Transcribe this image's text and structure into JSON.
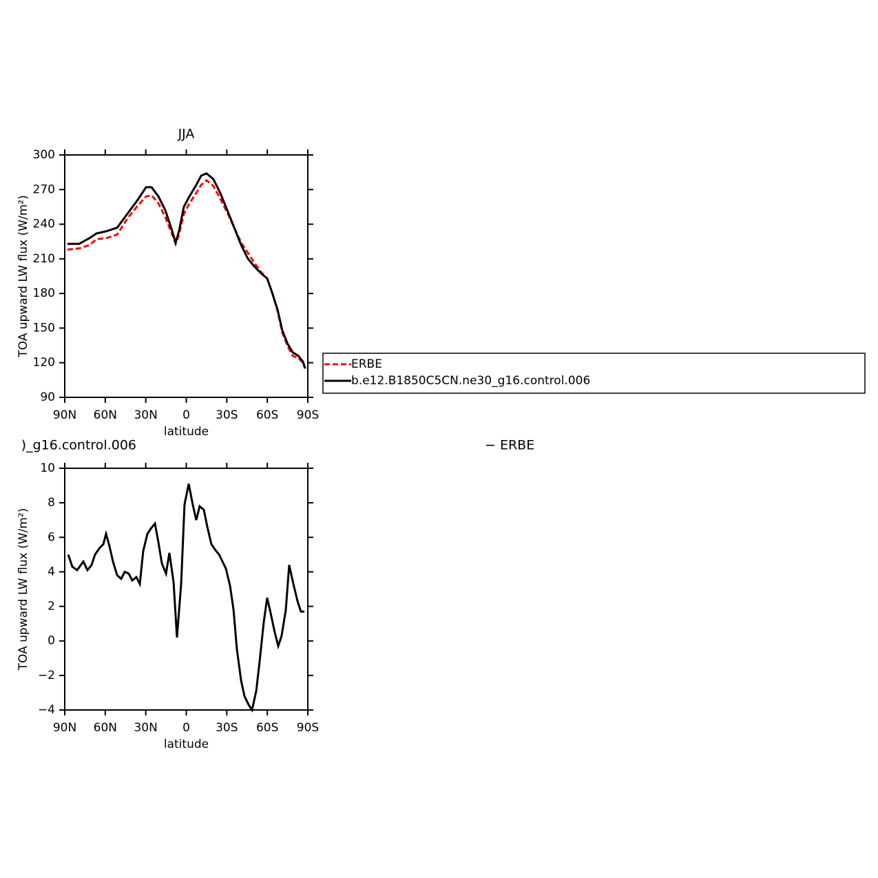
{
  "chart_data": [
    {
      "type": "line",
      "title": "JJA",
      "xlabel": "latitude",
      "ylabel": "TOA upward LW flux (W/m²)",
      "xlim": [
        90,
        -90
      ],
      "xticks": [
        {
          "value": 90,
          "label": "90N"
        },
        {
          "value": 60,
          "label": "60N"
        },
        {
          "value": 30,
          "label": "30N"
        },
        0,
        {
          "value": -30,
          "label": "30S"
        },
        {
          "value": -60,
          "label": "60S"
        },
        {
          "value": -90,
          "label": "90S"
        }
      ],
      "ylim": [
        90,
        300
      ],
      "yticks": [
        90,
        120,
        150,
        180,
        210,
        240,
        270,
        300
      ],
      "legend": "right",
      "x": [
        88,
        79.3,
        71.6,
        66.5,
        58.9,
        51.2,
        43.6,
        36,
        29.8,
        25.7,
        20.6,
        15.5,
        10.4,
        7.9,
        5.4,
        1.8,
        -2.3,
        -7.4,
        -11,
        -15,
        -20.1,
        -25.2,
        -30.4,
        -35.5,
        -40.6,
        -45.7,
        -50.7,
        -55.8,
        -59.9,
        -63.5,
        -67.6,
        -71.1,
        -75.2,
        -78.8,
        -82.9,
        -86.4,
        -88
      ],
      "series": [
        {
          "name": "ERBE",
          "color": "#ff0000",
          "linestyle": "dashed",
          "values": [
            218,
            219,
            222,
            227,
            228,
            231,
            245,
            256,
            264,
            265,
            258,
            246,
            231,
            223,
            231,
            249,
            258,
            267,
            274,
            278,
            273,
            262,
            250,
            237,
            224,
            215,
            206,
            198,
            193,
            181,
            165,
            146,
            134,
            126,
            124,
            120,
            115
          ]
        },
        {
          "name": "b.e12.B1850C5CN.ne30_g16.control.006",
          "color": "#000000",
          "linestyle": "solid",
          "values": [
            223,
            223,
            228,
            232,
            234,
            237,
            249,
            261,
            272,
            272,
            264,
            252,
            234,
            224,
            234,
            255,
            264,
            274,
            282,
            284,
            279,
            267,
            252,
            237,
            222,
            210,
            203,
            197,
            193,
            181,
            166,
            148,
            136,
            129,
            126,
            121,
            115
          ]
        }
      ]
    },
    {
      "type": "line",
      "title": [
        ")_g16.control.006",
        "− ERBE"
      ],
      "xlabel": "latitude",
      "ylabel": "TOA upward LW flux (W/m²)",
      "xlim": [
        90,
        -90
      ],
      "xticks": [
        {
          "value": 90,
          "label": "90N"
        },
        {
          "value": 60,
          "label": "60N"
        },
        {
          "value": 30,
          "label": "30N"
        },
        0,
        {
          "value": -30,
          "label": "30S"
        },
        {
          "value": -60,
          "label": "60S"
        },
        {
          "value": -90,
          "label": "90S"
        }
      ],
      "ylim": [
        -4,
        10
      ],
      "yticks": [
        {
          "value": -4,
          "label": "−4"
        },
        {
          "value": -2,
          "label": "−2"
        },
        0,
        2,
        4,
        6,
        8,
        10
      ],
      "x": [
        87.4,
        84.4,
        80.8,
        76.2,
        73.2,
        70.1,
        67.6,
        64,
        61.4,
        59.4,
        56.9,
        54.3,
        51.2,
        48.2,
        45.6,
        42.6,
        40,
        37,
        34.4,
        31.9,
        28.8,
        26.3,
        23.2,
        20.6,
        18.1,
        15,
        12.5,
        9.4,
        6.9,
        3.8,
        1.3,
        -1.8,
        -4.8,
        -7.4,
        -9.9,
        -13,
        -15.6,
        -18.6,
        -21.2,
        -24.3,
        -26.8,
        -29.3,
        -32.4,
        -35,
        -37.5,
        -40.6,
        -43.1,
        -46.2,
        -48.7,
        -51.8,
        -54.3,
        -57.4,
        -59.9,
        -62.5,
        -65.5,
        -68.1,
        -70.6,
        -73.7,
        -76.2,
        -79.3,
        -82.4,
        -84.9,
        -87.5
      ],
      "series": [
        {
          "color": "#000000",
          "linestyle": "solid",
          "values": [
            5.0,
            4.3,
            4.1,
            4.6,
            4.1,
            4.4,
            5.0,
            5.4,
            5.6,
            6.2,
            5.5,
            4.6,
            3.8,
            3.6,
            4.0,
            3.9,
            3.5,
            3.7,
            3.3,
            5.2,
            6.2,
            6.5,
            6.8,
            5.7,
            4.5,
            3.9,
            5.1,
            3.4,
            0.2,
            3.3,
            7.9,
            9.1,
            7.9,
            7.0,
            7.8,
            7.6,
            6.6,
            5.6,
            5.3,
            5.0,
            4.6,
            4.2,
            3.2,
            1.8,
            -0.5,
            -2.3,
            -3.2,
            -3.7,
            -4.0,
            -2.9,
            -1.2,
            1.1,
            2.5,
            1.6,
            0.5,
            -0.3,
            0.3,
            1.8,
            4.4,
            3.3,
            2.3,
            1.7,
            1.7
          ]
        }
      ]
    }
  ]
}
